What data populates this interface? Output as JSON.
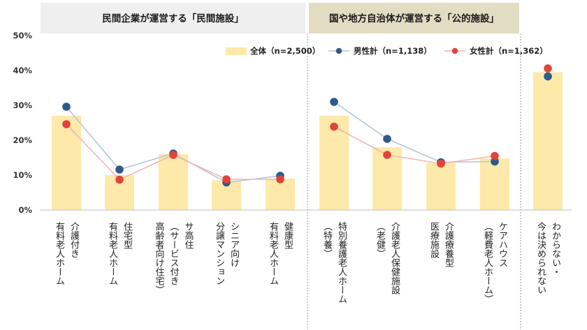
{
  "chart_data": {
    "type": "bar",
    "title": "",
    "ylim": [
      0,
      50
    ],
    "yticks": [
      "0%",
      "10%",
      "20%",
      "30%",
      "40%",
      "50%"
    ],
    "legend_position": "top-right",
    "groups": [
      {
        "label": "民間企業が運営する「民間施設」",
        "color": "#efefef"
      },
      {
        "label": "国や地方自治体が運営する「公的施設」",
        "color": "#e2dcc3"
      }
    ],
    "categories": [
      [
        "介護付き",
        "有料老人ホーム"
      ],
      [
        "住宅型",
        "有料老人ホーム"
      ],
      [
        "サ高住",
        "（サービス付き",
        "高齢者向け住宅）"
      ],
      [
        "シニア向け",
        "分譲マンション"
      ],
      [
        "健康型",
        "有料老人ホーム"
      ],
      [
        "特別養護老人ホーム",
        "（特養）"
      ],
      [
        "介護老人保健施設",
        "（老健）"
      ],
      [
        "介護療養型",
        "医療施設"
      ],
      [
        "ケアハウス",
        "（軽費老人ホーム）"
      ],
      [
        "わからない・",
        "今は決められない"
      ]
    ],
    "series": [
      {
        "name": "全体（n=2,500）",
        "type": "bar",
        "color": "#fde9a9",
        "values": [
          27.0,
          10.0,
          16.0,
          8.5,
          9.0,
          27.0,
          18.0,
          13.5,
          14.8,
          39.5
        ]
      },
      {
        "name": "男性計（n=1,138）",
        "type": "line",
        "color": "#2e5a8c",
        "line_color": "#b5c5db",
        "values": [
          29.6,
          11.6,
          16.2,
          7.9,
          9.8,
          31.0,
          20.4,
          13.7,
          13.9,
          38.3
        ]
      },
      {
        "name": "女性計（n=1,362）",
        "type": "line",
        "color": "#e0443a",
        "line_color": "#f4b4b0",
        "values": [
          24.6,
          8.7,
          15.8,
          8.8,
          8.8,
          23.9,
          15.8,
          13.3,
          15.5,
          40.6
        ]
      }
    ]
  }
}
